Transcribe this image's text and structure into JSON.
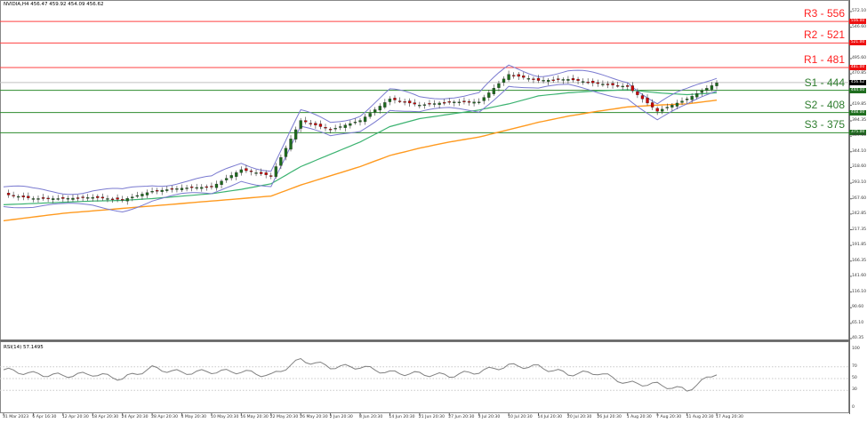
{
  "header": {
    "symbol_title": "NVIDIA,H4  456.47 459.92 454.09 456.62",
    "rsi_title": "RSI(14) 57.1495"
  },
  "colors": {
    "resistance": "#ff4040",
    "support": "#2e8b2e",
    "bollinger": "#7a7ad0",
    "ma_fast": "#3cb371",
    "ma_slow": "#ff9a1f",
    "bull_candle": "#1e6b1e",
    "bear_candle": "#cc0000",
    "current_price_badge": "#000000",
    "rsi_line": "#808080"
  },
  "levels": [
    {
      "label": "R3 - 556",
      "value": 556.0,
      "badge": "556.00",
      "type": "resistance"
    },
    {
      "label": "R2 - 521",
      "value": 521.0,
      "badge": "521.00",
      "type": "resistance"
    },
    {
      "label": "R1 - 481",
      "value": 481.0,
      "badge": "481.00",
      "type": "resistance"
    },
    {
      "label": "S1 - 444",
      "value": 444.0,
      "badge": "444.00",
      "type": "support"
    },
    {
      "label": "S2 - 408",
      "value": 408.0,
      "badge": "408.00",
      "type": "support"
    },
    {
      "label": "S3 - 375",
      "value": 375.0,
      "badge": "375.00",
      "type": "support"
    }
  ],
  "current_price": {
    "value": 456.62,
    "badge": "456.62"
  },
  "y_axis_ticks": [
    "572.10",
    "546.60",
    "495.60",
    "470.85",
    "419.85",
    "394.35",
    "369.60",
    "344.10",
    "318.60",
    "293.10",
    "267.60",
    "242.85",
    "217.35",
    "191.85",
    "166.35",
    "141.60",
    "116.10",
    "90.60",
    "65.10",
    "40.35"
  ],
  "rsi_axis_ticks": [
    "100",
    "70",
    "50",
    "30",
    "0"
  ],
  "x_axis_ticks": [
    "31 Mar 2023",
    "6 Apr 16:30",
    "12 Apr 20:30",
    "18 Apr 20:30",
    "24 Apr 20:30",
    "28 Apr 20:30",
    "4 May 20:30",
    "10 May 20:30",
    "16 May 20:30",
    "22 May 20:30",
    "26 May 20:30",
    "2 Jun 20:30",
    "8 Jun 20:30",
    "14 Jun 20:30",
    "21 Jun 20:30",
    "27 Jun 20:30",
    "3 Jul 20:30",
    "10 Jul 20:30",
    "14 Jul 20:30",
    "20 Jul 20:30",
    "26 Jul 20:30",
    "1 Aug 20:30",
    "7 Aug 20:30",
    "11 Aug 20:30",
    "17 Aug 20:30"
  ],
  "chart_data": {
    "type": "candlestick",
    "title": "NVIDIA,H4  456.47 459.92 454.09 456.62",
    "instrument": "NVIDIA",
    "timeframe": "H4",
    "ohlc_last": {
      "open": 456.47,
      "high": 459.92,
      "low": 454.09,
      "close": 456.62
    },
    "ylim": [
      40.35,
      572.1
    ],
    "x_tick_labels": [
      "31 Mar 2023",
      "6 Apr 16:30",
      "12 Apr 20:30",
      "18 Apr 20:30",
      "24 Apr 20:30",
      "28 Apr 20:30",
      "4 May 20:30",
      "10 May 20:30",
      "16 May 20:30",
      "22 May 20:30",
      "26 May 20:30",
      "2 Jun 20:30",
      "8 Jun 20:30",
      "14 Jun 20:30",
      "21 Jun 20:30",
      "27 Jun 20:30",
      "3 Jul 20:30",
      "10 Jul 20:30",
      "14 Jul 20:30",
      "20 Jul 20:30",
      "26 Jul 20:30",
      "1 Aug 20:30",
      "7 Aug 20:30",
      "11 Aug 20:30",
      "17 Aug 20:30"
    ],
    "approx_close_by_tick": [
      275,
      268,
      268,
      270,
      266,
      280,
      285,
      287,
      315,
      305,
      395,
      380,
      395,
      430,
      420,
      425,
      425,
      470,
      460,
      462,
      455,
      450,
      410,
      430,
      456
    ],
    "horizontal_levels": [
      {
        "name": "R3",
        "value": 556
      },
      {
        "name": "R2",
        "value": 521
      },
      {
        "name": "R1",
        "value": 481
      },
      {
        "name": "S1",
        "value": 444
      },
      {
        "name": "S2",
        "value": 408
      },
      {
        "name": "S3",
        "value": 375
      }
    ],
    "indicators": [
      {
        "name": "Bollinger Bands",
        "color": "#7a7ad0"
      },
      {
        "name": "Moving Average (fast)",
        "color": "#3cb371",
        "approx_by_tick": [
          258,
          260,
          262,
          264,
          265,
          268,
          272,
          276,
          283,
          292,
          320,
          340,
          360,
          385,
          398,
          405,
          412,
          422,
          435,
          440,
          443,
          445,
          440,
          437,
          440
        ]
      },
      {
        "name": "Moving Average (slow)",
        "color": "#ff9a1f",
        "approx_by_tick": [
          232,
          238,
          244,
          248,
          252,
          256,
          260,
          264,
          268,
          272,
          290,
          305,
          320,
          338,
          350,
          360,
          368,
          380,
          392,
          402,
          410,
          417,
          420,
          422,
          428
        ]
      }
    ],
    "rsi": {
      "period": 14,
      "value": 57.1495,
      "levels": [
        70,
        50,
        30
      ],
      "ylim": [
        0,
        100
      ],
      "approx_by_tick": [
        65,
        58,
        55,
        58,
        50,
        68,
        60,
        62,
        62,
        55,
        82,
        70,
        70,
        60,
        58,
        55,
        62,
        72,
        70,
        58,
        60,
        42,
        40,
        30,
        60
      ]
    }
  }
}
